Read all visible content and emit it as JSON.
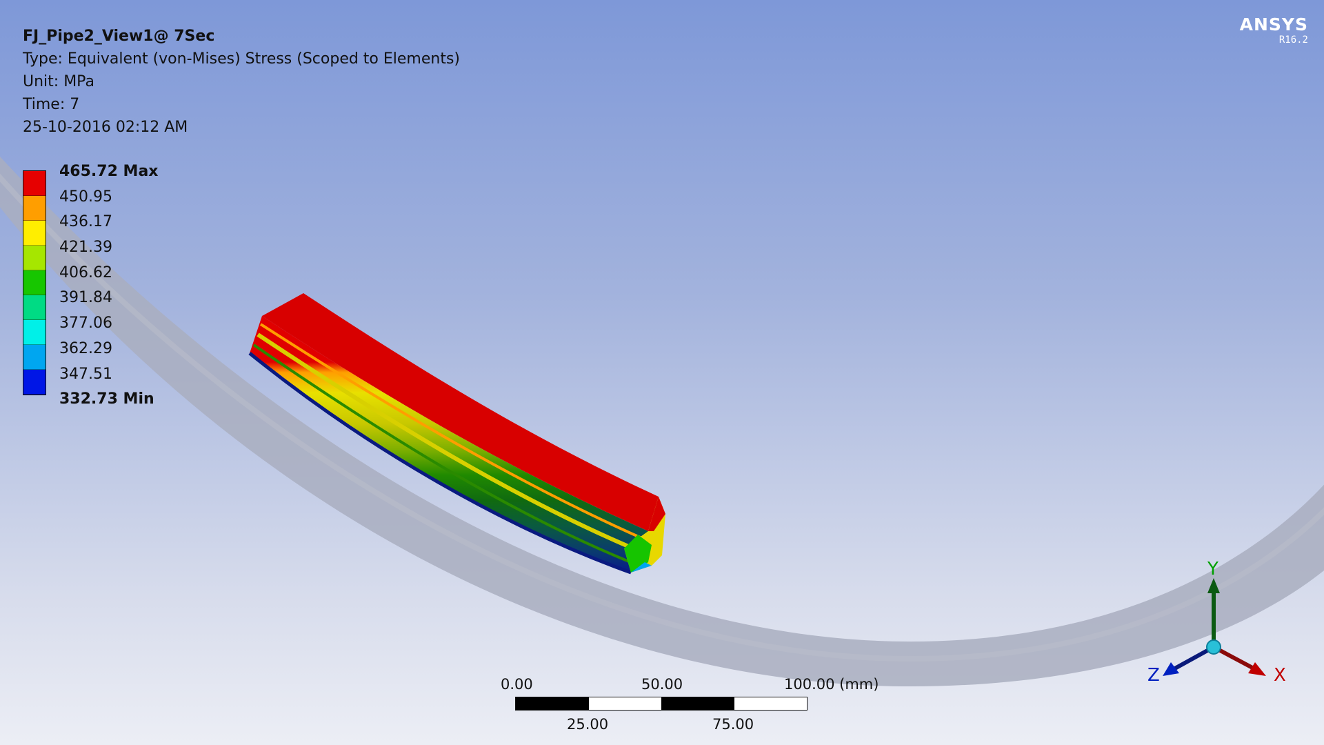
{
  "result": {
    "title": "FJ_Pipe2_View1@ 7Sec",
    "type_line": "Type: Equivalent (von-Mises) Stress (Scoped to Elements)",
    "unit_line": "Unit: MPa",
    "time_line": "Time: 7",
    "date_line": "25-10-2016 02:12 AM"
  },
  "legend": {
    "labels": [
      "465.72 Max",
      "450.95",
      "436.17",
      "421.39",
      "406.62",
      "391.84",
      "377.06",
      "362.29",
      "347.51",
      "332.73 Min"
    ],
    "colors": [
      "#e60000",
      "#ff9e00",
      "#ffee00",
      "#a6e600",
      "#17c600",
      "#00db84",
      "#00f0e8",
      "#00a6f0",
      "#0016e6"
    ]
  },
  "brand": {
    "logo": "ANSYS",
    "version": "R16.2"
  },
  "scale_bar": {
    "top_labels": [
      "0.00",
      "50.00",
      "100.00 (mm)"
    ],
    "bottom_labels": [
      "25.00",
      "75.00"
    ]
  },
  "triad": {
    "x_label": "X",
    "y_label": "Y",
    "z_label": "Z",
    "x_color": "#c00000",
    "y_color": "#00a000",
    "z_color": "#0020c0"
  }
}
